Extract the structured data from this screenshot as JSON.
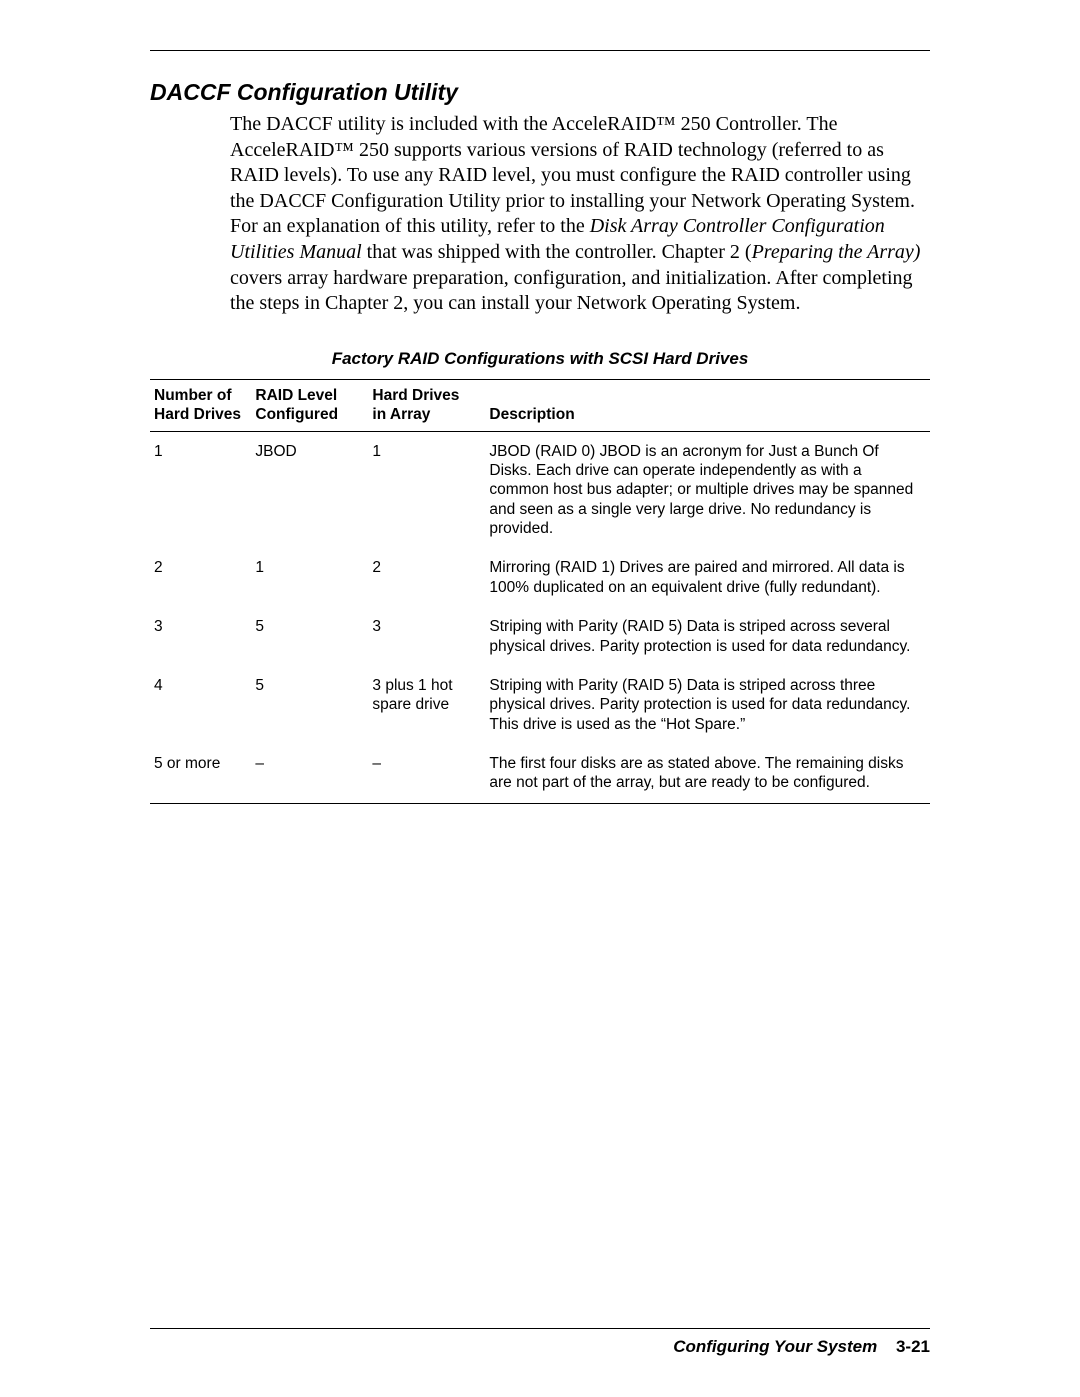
{
  "section": {
    "title": "DACCF Configuration Utility",
    "para_before_ital1": "The DACCF utility is included with the AcceleRAID™ 250 Controller. The AcceleRAID™ 250 supports various versions of RAID technology (referred to as RAID levels). To use any RAID level, you must configure the RAID controller using the DACCF Configuration Utility prior to installing your Network Operating System. For an explanation of this utility, refer to the ",
    "ital1": "Disk Array Controller Configuration Utilities Manual",
    "para_mid1": " that was shipped with the controller. Chapter 2 (",
    "ital2": "Preparing the Array)",
    "para_after_ital2": " covers array hardware preparation, configuration, and initialization. After completing the steps in Chapter 2, you can install your Network Operating System."
  },
  "table": {
    "caption": "Factory RAID Configurations with SCSI Hard Drives",
    "columns": {
      "num_l1": "Number of",
      "num_l2": "Hard Drives",
      "raid_l1": "RAID Level",
      "raid_l2": "Configured",
      "arr_l1": "Hard Drives",
      "arr_l2": "in Array",
      "desc": "Description"
    },
    "rows": [
      {
        "num": "1",
        "raid": "JBOD",
        "arr": "1",
        "desc": "JBOD (RAID 0) JBOD is an acronym for Just a Bunch Of Disks. Each drive can operate independently as with a common host bus adapter; or multiple drives may be spanned and seen as a single very large drive. No redundancy is provided."
      },
      {
        "num": "2",
        "raid": "1",
        "arr": "2",
        "desc": "Mirroring (RAID 1) Drives are paired and mirrored. All data is 100% duplicated on an equivalent drive (fully redundant)."
      },
      {
        "num": "3",
        "raid": "5",
        "arr": "3",
        "desc": "Striping with Parity (RAID 5) Data is striped across several physical drives. Parity protection is used for data redundancy."
      },
      {
        "num": "4",
        "raid": "5",
        "arr": "3 plus 1 hot spare drive",
        "desc": "Striping with Parity (RAID 5) Data is striped across three physical drives. Parity protection is used for data redundancy. This drive is used as the “Hot Spare.”"
      },
      {
        "num": "5 or more",
        "raid": "–",
        "arr": "–",
        "desc": "The first four disks are as stated above. The remaining disks are not part of the array, but are ready to be configured."
      }
    ]
  },
  "footer": {
    "chapter": "Configuring Your System",
    "page": "3-21"
  }
}
